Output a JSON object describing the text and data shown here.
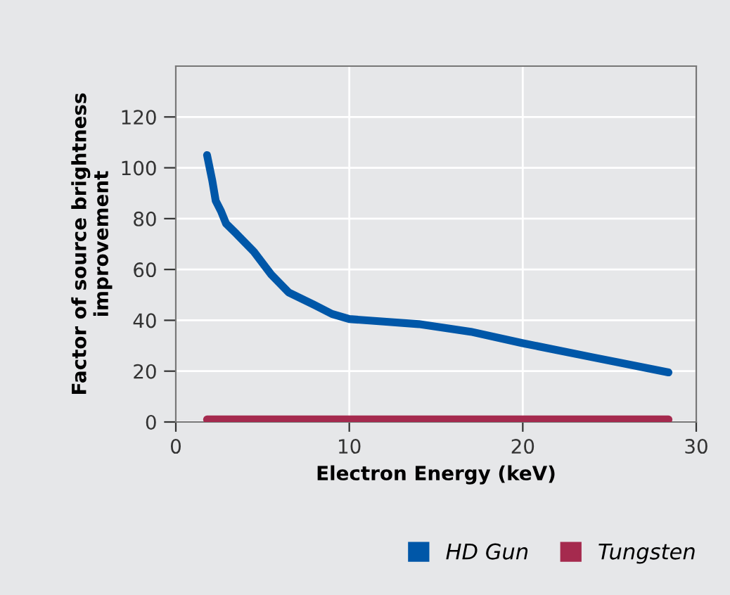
{
  "chart_data": {
    "type": "line",
    "xlabel": "Electron Energy (keV)",
    "ylabel": "Factor of source brightness\nimprovement",
    "xlim": [
      0,
      30
    ],
    "xticks": [
      0,
      10,
      20,
      30
    ],
    "ylim": [
      0,
      140
    ],
    "yticks": [
      0,
      20,
      40,
      60,
      80,
      100,
      120
    ],
    "grid": true,
    "legend": "bottom right",
    "marker": "none",
    "line_style": "solid",
    "series": [
      {
        "name": "HD Gun",
        "color": "#0057a8",
        "x": [
          1.8,
          2.1,
          2.3,
          2.6,
          2.9,
          3.5,
          4.5,
          5.5,
          6.5,
          8,
          9,
          10,
          12,
          14,
          17,
          20,
          24,
          28.4
        ],
        "values": [
          105,
          95,
          87,
          83,
          78,
          74,
          67,
          58,
          51,
          46,
          42.5,
          40.5,
          39.5,
          38.5,
          35.5,
          31,
          25.5,
          19.5
        ]
      },
      {
        "name": "Tungsten",
        "color": "#a52a4e",
        "x": [
          1.8,
          28.4
        ],
        "values": [
          1,
          1
        ]
      }
    ]
  }
}
